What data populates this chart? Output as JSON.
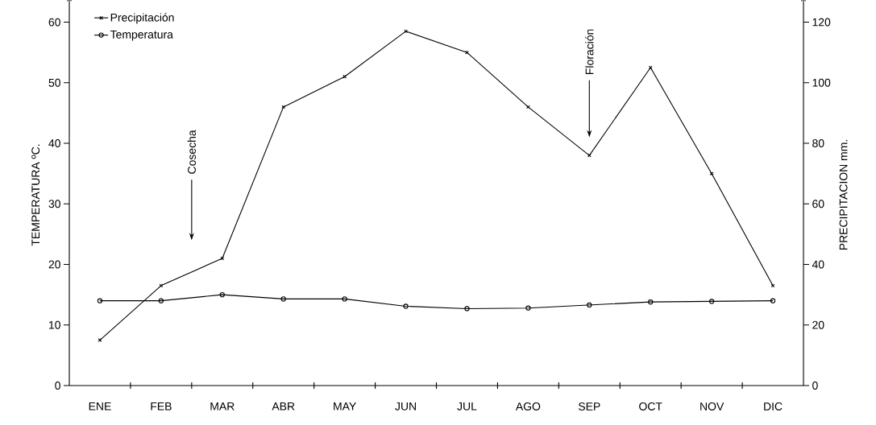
{
  "chart_data": {
    "type": "line",
    "categories": [
      "ENE",
      "FEB",
      "MAR",
      "ABR",
      "MAY",
      "JUN",
      "JUL",
      "AGO",
      "SEP",
      "OCT",
      "NOV",
      "DIC"
    ],
    "series": [
      {
        "name": "Precipitación",
        "color": "#000000",
        "marker": "cross",
        "axis": "y2",
        "values": [
          15,
          33,
          42,
          92,
          102,
          117,
          110,
          92,
          76,
          105,
          70,
          33
        ]
      },
      {
        "name": "Temperatura",
        "color": "#000000",
        "marker": "circle",
        "values": [
          14,
          14,
          15,
          14.3,
          14.3,
          13.1,
          12.7,
          12.8,
          13.3,
          13.8,
          13.9,
          14
        ]
      }
    ],
    "ylabel": "TEMPERATURA ºC.",
    "y2label": "PRECIPITACION   mm.",
    "ylim": [
      0,
      63
    ],
    "yticks": [
      0,
      10,
      20,
      30,
      40,
      50,
      60
    ],
    "y2lim": [
      0,
      126
    ],
    "y2ticks": [
      0,
      20,
      40,
      60,
      80,
      100,
      120
    ],
    "annotations": [
      "Cosecha",
      "Floración"
    ],
    "legend": "top left",
    "grid": false,
    "line_style": "solid"
  }
}
